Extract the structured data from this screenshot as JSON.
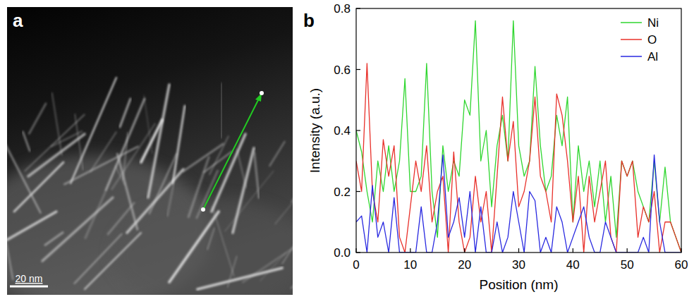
{
  "panel_labels": [
    "a",
    "b"
  ],
  "image": {
    "scale_bar": "20 nm"
  },
  "chart_data": {
    "type": "line",
    "x_label": "Position (nm)",
    "y_label": "Intensity (a.u.)",
    "x": [
      0,
      1,
      2,
      3,
      4,
      5,
      6,
      7,
      8,
      9,
      10,
      11,
      12,
      13,
      14,
      15,
      16,
      17,
      18,
      19,
      20,
      21,
      22,
      23,
      24,
      25,
      26,
      27,
      28,
      29,
      30,
      31,
      32,
      33,
      34,
      35,
      36,
      37,
      38,
      39,
      40,
      41,
      42,
      43,
      44,
      45,
      46,
      47,
      48,
      49,
      50,
      51,
      52,
      53,
      54,
      55,
      56,
      57,
      58,
      59,
      60
    ],
    "series": [
      {
        "name": "Ni",
        "color": "#2fd62f",
        "values": [
          0.4,
          0.33,
          0.2,
          0.1,
          0.3,
          0.2,
          0.35,
          0.2,
          0.3,
          0.57,
          0.2,
          0.2,
          0.25,
          0.62,
          0.2,
          0.05,
          0.35,
          0.2,
          0.3,
          0.25,
          0.5,
          0.45,
          0.76,
          0.3,
          0.4,
          0.15,
          0.35,
          0.45,
          0.3,
          0.76,
          0.35,
          0.25,
          0.3,
          0.61,
          0.35,
          0.2,
          0.25,
          0.45,
          0.35,
          0.51,
          0.1,
          0.35,
          0.2,
          0.3,
          0.15,
          0.3,
          0.1,
          0.25,
          0.05,
          0.3,
          0.25,
          0.3,
          0.2,
          0.15,
          0.1,
          0.3,
          0.1,
          0.28,
          0.1,
          0.05,
          0.0
        ]
      },
      {
        "name": "O",
        "color": "#e8302a",
        "values": [
          0.3,
          0.2,
          0.62,
          0.2,
          0.1,
          0.37,
          0.25,
          0.35,
          0.05,
          0.0,
          0.15,
          0.3,
          0.2,
          0.35,
          0.1,
          0.2,
          0.25,
          0.0,
          0.33,
          0.1,
          0.0,
          0.05,
          0.25,
          0.1,
          0.2,
          0.0,
          0.25,
          0.51,
          0.3,
          0.43,
          0.15,
          0.2,
          0.3,
          0.51,
          0.25,
          0.2,
          0.1,
          0.52,
          0.45,
          0.3,
          0.1,
          0.25,
          0.0,
          0.25,
          0.1,
          0.2,
          0.3,
          0.05,
          0.0,
          0.3,
          0.25,
          0.3,
          0.05,
          0.15,
          0.1,
          0.2,
          0.0,
          0.1,
          0.1,
          0.05,
          0.0
        ]
      },
      {
        "name": "Al",
        "color": "#2828e0",
        "values": [
          0.1,
          0.12,
          0.0,
          0.22,
          0.05,
          0.1,
          0.0,
          0.18,
          0.0,
          0.0,
          0.0,
          0.0,
          0.15,
          0.0,
          0.0,
          0.1,
          0.32,
          0.05,
          0.1,
          0.18,
          0.05,
          0.2,
          0.0,
          0.15,
          0.0,
          0.0,
          0.1,
          0.0,
          0.05,
          0.2,
          0.1,
          0.0,
          0.2,
          0.17,
          0.0,
          0.05,
          0.0,
          0.15,
          0.1,
          0.0,
          0.05,
          0.1,
          0.15,
          0.05,
          0.0,
          0.0,
          0.1,
          0.05,
          0.0,
          0.0,
          0.0,
          0.0,
          0.0,
          0.05,
          0.0,
          0.32,
          0.1,
          0.0,
          0.0,
          0.0,
          0.0
        ]
      }
    ],
    "xlim": [
      0,
      60
    ],
    "ylim": [
      0,
      0.8
    ],
    "xticks": [
      0,
      10,
      20,
      30,
      40,
      50,
      60
    ],
    "yticks": [
      {
        "value": 0,
        "label": "0.0"
      },
      0.2,
      0.4,
      0.6,
      0.8
    ],
    "legend": "upper right",
    "grid": false
  }
}
